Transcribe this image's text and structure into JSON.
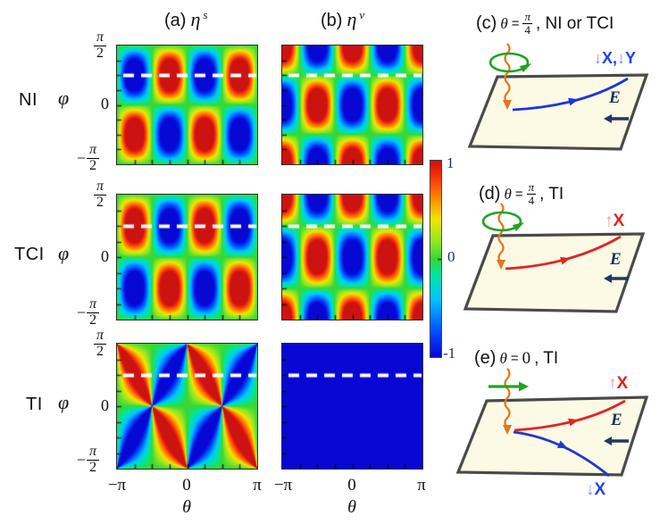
{
  "heatmap_section": {
    "column_titles": {
      "a": {
        "tag": "(a)",
        "symbol": "η",
        "sup": "s"
      },
      "b": {
        "tag": "(b)",
        "symbol": "η",
        "sup": "v"
      }
    },
    "row_labels": [
      "NI",
      "TCI",
      "TI"
    ],
    "y_axis": {
      "label": "φ",
      "tick_top": {
        "num": "π",
        "den": "2"
      },
      "tick_mid": "0",
      "tick_bottom": {
        "sign": "−",
        "num": "π",
        "den": "2"
      }
    },
    "x_axis": {
      "label": "θ",
      "ticks": [
        "−π",
        "0",
        "π"
      ]
    },
    "colorbar": {
      "max": "1",
      "mid": "0",
      "min": "-1",
      "colormap": "jet",
      "range": [
        -1,
        1
      ]
    }
  },
  "chart_data": [
    {
      "id": "NI-s",
      "type": "heatmap",
      "row": "NI",
      "column": "(a) η^s",
      "pattern": "ni_s",
      "formula": "η^s = −sin(2θ)·sin(2φ)",
      "x": "θ",
      "x_range": [
        "−π",
        "π"
      ],
      "y": "φ",
      "y_range": [
        "−π/2",
        "π/2"
      ],
      "z_range": [
        -1,
        1
      ],
      "dashed_line": "φ = π/4",
      "colormap": "jet"
    },
    {
      "id": "NI-v",
      "type": "heatmap",
      "row": "NI",
      "column": "(b) η^v",
      "pattern": "ni_v",
      "formula": "η^v = −cos(2θ)·cos(2φ)",
      "x": "θ",
      "x_range": [
        "−π",
        "π"
      ],
      "y": "φ",
      "y_range": [
        "−π/2",
        "π/2"
      ],
      "z_range": [
        -1,
        1
      ],
      "dashed_line": "φ = π/4",
      "colormap": "jet"
    },
    {
      "id": "TCI-s",
      "type": "heatmap",
      "row": "TCI",
      "column": "(a) η^s",
      "pattern": "tci_s",
      "formula": "η^s = +sin(2θ)·sin(2φ)",
      "x": "θ",
      "x_range": [
        "−π",
        "π"
      ],
      "y": "φ",
      "y_range": [
        "−π/2",
        "π/2"
      ],
      "z_range": [
        -1,
        1
      ],
      "dashed_line": "φ = π/4",
      "colormap": "jet"
    },
    {
      "id": "TCI-v",
      "type": "heatmap",
      "row": "TCI",
      "column": "(b) η^v",
      "pattern": "tci_v",
      "formula": "η^v = −cos(2θ)·cos(2φ)",
      "x": "θ",
      "x_range": [
        "−π",
        "π"
      ],
      "y": "φ",
      "y_range": [
        "−π/2",
        "π/2"
      ],
      "z_range": [
        -1,
        1
      ],
      "dashed_line": "φ = π/4",
      "colormap": "jet"
    },
    {
      "id": "TI-s",
      "type": "heatmap",
      "row": "TI",
      "column": "(a) η^s",
      "pattern": "ti_s",
      "formula": "η^s = sin(2θ)·sin(2φ) / (1 + cos(2θ)·cos(2φ))",
      "x": "θ",
      "x_range": [
        "−π",
        "π"
      ],
      "y": "φ",
      "y_range": [
        "−π/2",
        "π/2"
      ],
      "z_range": [
        -1,
        1
      ],
      "dashed_line": "φ = π/4",
      "colormap": "jet"
    },
    {
      "id": "TI-v",
      "type": "heatmap",
      "row": "TI",
      "column": "(b) η^v",
      "pattern": "ti_v",
      "formula": "η^v = −1",
      "x": "θ",
      "x_range": [
        "−π",
        "π"
      ],
      "y": "φ",
      "y_range": [
        "−π/2",
        "π/2"
      ],
      "z_range": [
        -1,
        1
      ],
      "dashed_line": "φ = π/4",
      "colormap": "jet"
    }
  ],
  "diagrams": {
    "colors": {
      "spin_down": "#2244e6",
      "spin_down_arrow": "#7f8df2",
      "spin_up": "#e32222",
      "spin_up_arrow": "#f39090",
      "field": "#1f3864",
      "photon": "#e2761b",
      "polarization": "#1fa41f",
      "plane_fill": "#fcf9e5",
      "plane_edge": "#4a4a4a"
    },
    "c": {
      "tag": "(c)",
      "theta": "θ",
      "eq": "=",
      "frac": {
        "num": "π",
        "den": "4"
      },
      "suffix": ", NI or TCI",
      "spin": {
        "arrow1": "↓",
        "text1": "X,",
        "arrow2": "↓",
        "text2": "Y"
      },
      "field_label": "E",
      "polarization_icon": "circular-polarization-ellipse",
      "photon_icon": "wavy-arrow-down"
    },
    "d": {
      "tag": "(d)",
      "theta": "θ",
      "eq": "=",
      "frac": {
        "num": "π",
        "den": "4"
      },
      "suffix": ", TI",
      "spin": {
        "arrow": "↑",
        "text": "X"
      },
      "field_label": "E",
      "polarization_icon": "circular-polarization-ellipse",
      "photon_icon": "wavy-arrow-down"
    },
    "e": {
      "tag": "(e)",
      "theta": "θ",
      "eq": "=",
      "value": "0",
      "suffix": ", TI",
      "spin_up": {
        "arrow": "↑",
        "text": "X"
      },
      "spin_down": {
        "arrow": "↓",
        "text": "X"
      },
      "field_label": "E",
      "polarization_icon": "linear-polarization-arrow",
      "photon_icon": "wavy-arrow-down"
    }
  }
}
